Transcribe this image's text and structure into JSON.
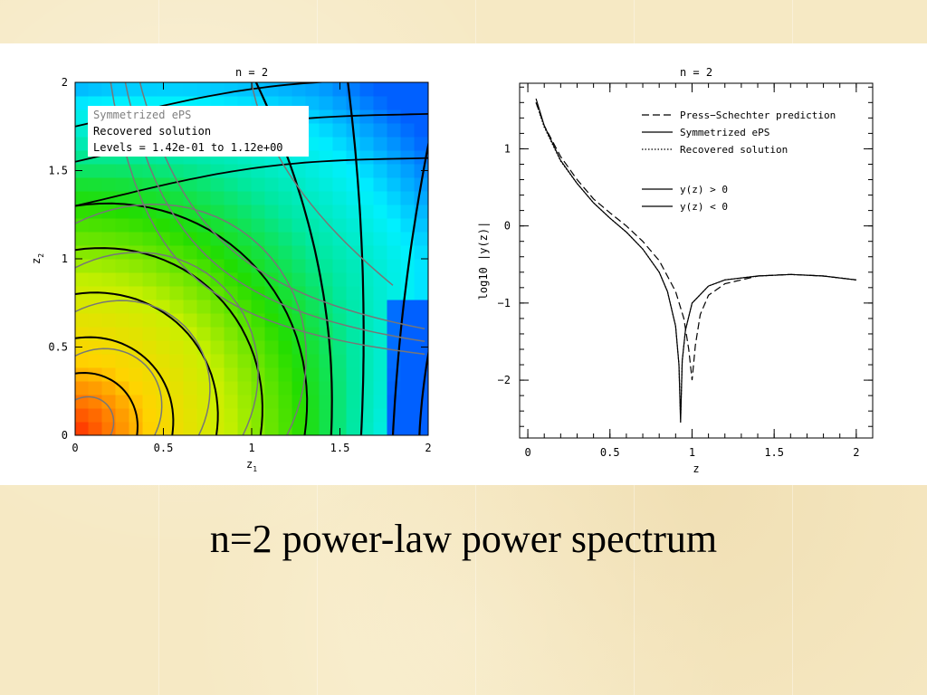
{
  "slide": {
    "title": "n=2 power-law power spectrum"
  },
  "chart_data": [
    {
      "type": "heatmap",
      "title": "n =  2",
      "xlabel": "z",
      "xlabel_sub": "1",
      "ylabel": "z",
      "ylabel_sub": "2",
      "xlim": [
        0,
        2
      ],
      "ylim": [
        0,
        2
      ],
      "xticks": [
        0,
        0.5,
        1,
        1.5,
        2
      ],
      "yticks": [
        0,
        0.5,
        1,
        1.5,
        2
      ],
      "xtick_labels": [
        "0",
        "0.5",
        "1",
        "1.5",
        "2"
      ],
      "ytick_labels": [
        "0",
        "0.5",
        "1",
        "1.5",
        "2"
      ],
      "colormap": [
        "#ff2a00",
        "#ffd400",
        "#c8f000",
        "#22dd00",
        "#00e8a0",
        "#00f0ff",
        "#0060ff"
      ],
      "legend": [
        {
          "label": "Symmetrized ePS",
          "color": "#808080"
        },
        {
          "label": "Recovered solution",
          "color": "#000000"
        },
        {
          "label": "Levels = 1.42e-01 to 1.12e+00",
          "color": "#000000"
        }
      ],
      "legend_position": "top-left"
    },
    {
      "type": "line",
      "title": "n =  2",
      "xlabel": "z",
      "ylabel": "log10 |y(z)|",
      "xlim": [
        -0.05,
        2.1
      ],
      "ylim": [
        -2.75,
        1.85
      ],
      "xticks": [
        0,
        0.5,
        1,
        1.5,
        2
      ],
      "yticks": [
        -2,
        -1,
        0,
        1
      ],
      "xtick_labels": [
        "0",
        "0.5",
        "1",
        "1.5",
        "2"
      ],
      "ytick_labels": [
        "−2",
        "−1",
        "0",
        "1"
      ],
      "legend_position": "top-right",
      "legend": [
        {
          "label": "Press−Schechter prediction",
          "style": "dashed"
        },
        {
          "label": "Symmetrized ePS",
          "style": "solid"
        },
        {
          "label": "Recovered solution",
          "style": "dotted"
        },
        {
          "label": "y(z) > 0",
          "style": "solid"
        },
        {
          "label": "y(z) < 0",
          "style": "solid"
        }
      ],
      "series": [
        {
          "name": "Press−Schechter prediction",
          "style": "dashed",
          "x": [
            0.05,
            0.1,
            0.2,
            0.3,
            0.4,
            0.5,
            0.6,
            0.7,
            0.8,
            0.9,
            0.95,
            0.98,
            1.0,
            1.02,
            1.05,
            1.1,
            1.2,
            1.4,
            1.6,
            1.8,
            2.0
          ],
          "y": [
            1.6,
            1.3,
            0.9,
            0.6,
            0.35,
            0.17,
            0.0,
            -0.2,
            -0.45,
            -0.85,
            -1.2,
            -1.6,
            -2.0,
            -1.55,
            -1.15,
            -0.9,
            -0.75,
            -0.65,
            -0.63,
            -0.65,
            -0.7
          ]
        },
        {
          "name": "Symmetrized ePS",
          "style": "solid",
          "x": [
            0.05,
            0.1,
            0.2,
            0.3,
            0.4,
            0.5,
            0.6,
            0.7,
            0.8,
            0.85,
            0.9,
            0.92,
            0.93,
            0.94,
            0.96,
            1.0,
            1.1,
            1.2,
            1.4,
            1.6,
            1.8,
            2.0
          ],
          "y": [
            1.65,
            1.3,
            0.85,
            0.55,
            0.3,
            0.1,
            -0.08,
            -0.3,
            -0.6,
            -0.85,
            -1.3,
            -1.8,
            -2.55,
            -1.75,
            -1.35,
            -1.0,
            -0.78,
            -0.7,
            -0.65,
            -0.63,
            -0.65,
            -0.7
          ]
        },
        {
          "name": "Recovered solution",
          "style": "dotted",
          "x": [
            0.05,
            0.1,
            0.2,
            0.3,
            0.4,
            0.5,
            0.6,
            0.7,
            0.8,
            0.85,
            0.9,
            0.92,
            0.93,
            0.94,
            0.96,
            1.0,
            1.1,
            1.2,
            1.4,
            1.6,
            1.8,
            2.0
          ],
          "y": [
            1.6,
            1.28,
            0.84,
            0.55,
            0.3,
            0.1,
            -0.08,
            -0.3,
            -0.6,
            -0.85,
            -1.3,
            -1.8,
            -2.5,
            -1.75,
            -1.35,
            -1.0,
            -0.78,
            -0.7,
            -0.65,
            -0.63,
            -0.65,
            -0.7
          ]
        }
      ]
    }
  ]
}
